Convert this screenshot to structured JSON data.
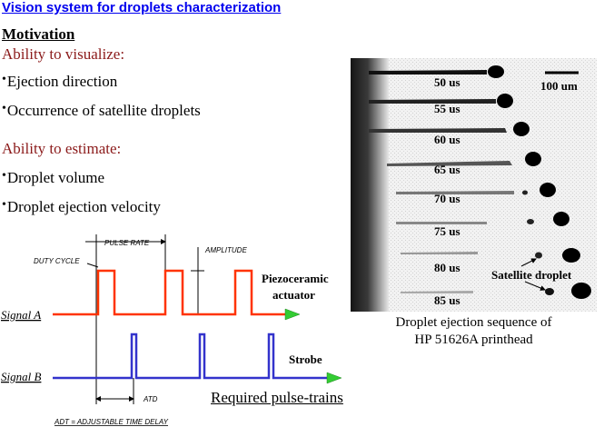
{
  "title": "Vision system for droplets characterization",
  "motivation": "Motivation",
  "visualize": {
    "heading": "Ability to visualize:",
    "items": [
      "Ejection direction",
      "Occurrence of satellite droplets"
    ]
  },
  "estimate": {
    "heading": "Ability to estimate:",
    "items": [
      "Droplet volume",
      "Droplet ejection velocity"
    ]
  },
  "diagram": {
    "pulse_rate": "PULSE RATE",
    "duty_cycle": "DUTY CYCLE",
    "amplitude": "AMPLITUDE",
    "signal_a": "Signal A",
    "signal_b": "Signal B",
    "piezo_line1": "Piezoceramic",
    "piezo_line2": "actuator",
    "strobe": "Strobe",
    "atd": "ATD",
    "adt_note": "ADT = ADJUSTABLE TIME DELAY",
    "required": "Required pulse-trains",
    "colors": {
      "signal_a": "#ff3300",
      "signal_b": "#3333cc",
      "arrow": "#33cc33"
    }
  },
  "photo": {
    "times": [
      "50 us",
      "55 us",
      "60 us",
      "65 us",
      "70 us",
      "75 us",
      "80 us",
      "85 us"
    ],
    "scale": "100 um",
    "satellite": "Satellite droplet",
    "caption_line1": "Droplet ejection sequence of",
    "caption_line2": "HP 51626A printhead"
  }
}
